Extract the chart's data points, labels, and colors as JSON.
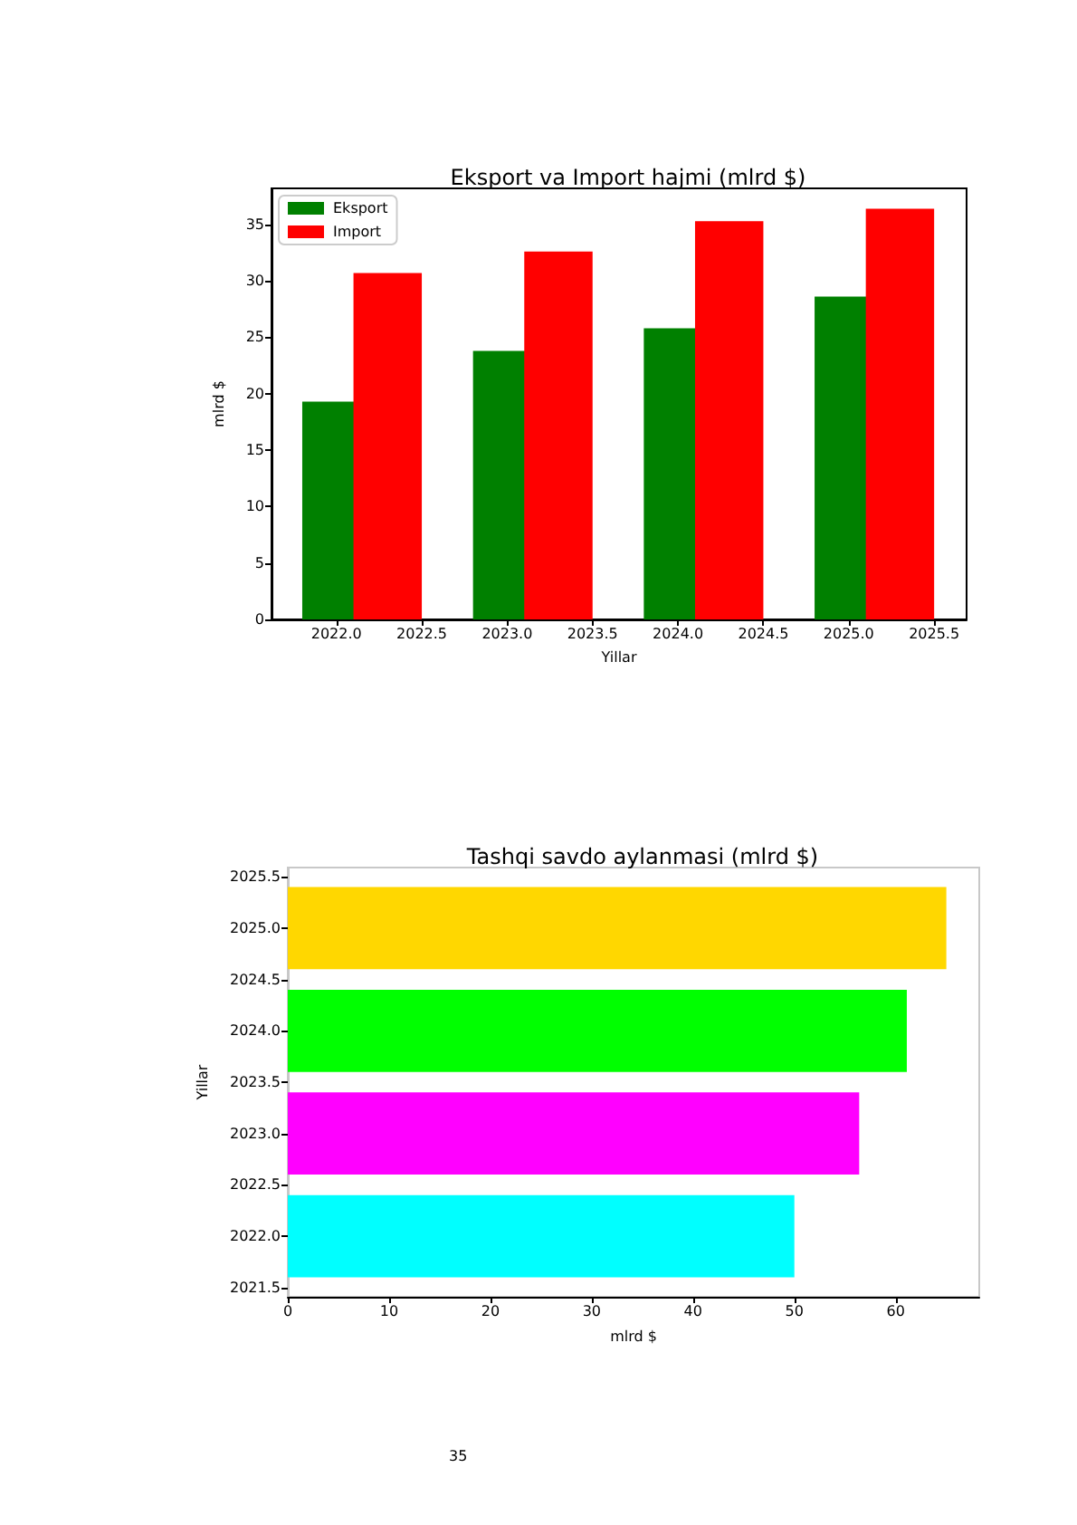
{
  "chart_data": [
    {
      "type": "bar",
      "title": "Eksport va Import hajmi (mlrd $)",
      "xlabel": "Yillar",
      "ylabel": "mlrd $",
      "series": [
        {
          "name": "Eksport",
          "color": "#008000",
          "x": [
            2022,
            2023,
            2024,
            2025
          ],
          "values": [
            19.3,
            23.8,
            25.8,
            28.6
          ]
        },
        {
          "name": "Import",
          "color": "#ff0000",
          "x": [
            2022.3,
            2023.3,
            2024.3,
            2025.3
          ],
          "values": [
            30.7,
            32.6,
            35.3,
            36.4
          ]
        }
      ],
      "xlim": [
        2021.62,
        2025.69
      ],
      "xticks": [
        {
          "value": 2022,
          "label": "2022.0"
        },
        2022.5,
        {
          "value": 2023,
          "label": "2023.0"
        },
        2023.5,
        {
          "value": 2024,
          "label": "2024.0"
        },
        2024.5,
        {
          "value": 2025,
          "label": "2025.0"
        },
        2025.5
      ],
      "ylim": [
        0,
        38.2
      ],
      "yticks": [
        0,
        5,
        10,
        15,
        20,
        25,
        30,
        35
      ],
      "legend": "top left"
    },
    {
      "type": "bar",
      "orientation": "horizontal",
      "title": "Tashqi savdo aylanmasi (mlrd $)",
      "xlabel": "mlrd $",
      "ylabel": "Yillar",
      "x": [
        2022,
        2023,
        2024,
        2025
      ],
      "values": [
        50.0,
        56.4,
        61.1,
        65.0
      ],
      "colors": [
        "#00ffff",
        "#ff00ff",
        "#00ff00",
        "#ffd700"
      ],
      "xlim": [
        0,
        68.25
      ],
      "xticks": [
        0,
        10,
        20,
        30,
        40,
        50,
        60
      ],
      "ylim": [
        2021.41,
        2025.59
      ],
      "yticks": [
        2021.5,
        {
          "value": 2022,
          "label": "2022.0"
        },
        2022.5,
        {
          "value": 2023,
          "label": "2023.0"
        },
        2023.5,
        {
          "value": 2024,
          "label": "2024.0"
        },
        2024.5,
        {
          "value": 2025,
          "label": "2025.0"
        },
        2025.5
      ],
      "annotations": [
        "35"
      ]
    }
  ]
}
